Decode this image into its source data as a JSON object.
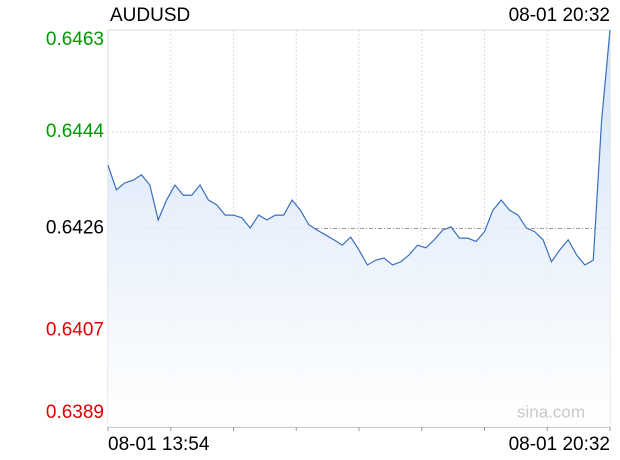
{
  "chart_data": {
    "type": "area",
    "title": "AUDUSD",
    "timestamp": "08-01 20:32",
    "watermark": "sina.com",
    "categories": [
      "08-01 13:54",
      null,
      null,
      null,
      null,
      null,
      null,
      null,
      null,
      null,
      null,
      null,
      null,
      null,
      null,
      null,
      null,
      null,
      null,
      null,
      null,
      null,
      null,
      null,
      null,
      null,
      null,
      null,
      null,
      null,
      null,
      null,
      null,
      null,
      null,
      null,
      null,
      null,
      null,
      null,
      null,
      null,
      null,
      null,
      null,
      null,
      null,
      null,
      null,
      null,
      null,
      null,
      null,
      null,
      null,
      null,
      null,
      null,
      null,
      null,
      "08-01 20:32"
    ],
    "values": [
      0.64378,
      0.64332,
      0.64345,
      0.6435,
      0.6436,
      0.64341,
      0.64276,
      0.64313,
      0.64341,
      0.64322,
      0.64322,
      0.64341,
      0.64313,
      0.64304,
      0.64285,
      0.64285,
      0.6428,
      0.64261,
      0.64285,
      0.64276,
      0.64285,
      0.64285,
      0.64313,
      0.64294,
      0.64267,
      0.64257,
      0.64248,
      0.64239,
      0.64229,
      0.64244,
      0.6422,
      0.64192,
      0.64201,
      0.64205,
      0.64192,
      0.64198,
      0.64211,
      0.64229,
      0.64224,
      0.64239,
      0.64257,
      0.64263,
      0.64242,
      0.64242,
      0.64236,
      0.64254,
      0.64294,
      0.64313,
      0.64294,
      0.64285,
      0.64261,
      0.64254,
      0.64239,
      0.64198,
      0.6422,
      0.64239,
      0.64211,
      0.64192,
      0.64201,
      0.64462,
      0.6463
    ],
    "color": "#3a6fbf",
    "ylim": [
      0.6389,
      0.6463
    ],
    "yticks": [
      0.6389,
      0.6407,
      0.6426,
      0.6444,
      0.6463
    ],
    "baseline": 0.6426,
    "up_color": "#009900",
    "down_color": "#e00000",
    "grid": true
  }
}
